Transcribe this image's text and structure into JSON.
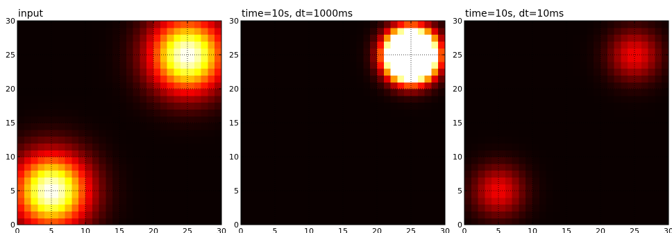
{
  "chart_data": [
    {
      "type": "heatmap",
      "title": "input",
      "xlim": [
        0,
        30
      ],
      "ylim": [
        0,
        30
      ],
      "xticks": [
        "0",
        "5",
        "10",
        "15",
        "20",
        "25",
        "30"
      ],
      "yticks": [
        "0",
        "5",
        "10",
        "15",
        "20",
        "25",
        "30"
      ],
      "grid": "dotted lines at 5, 10, 15, 20, 25",
      "colormap": "hot",
      "vmax": 1.0,
      "blobs": [
        {
          "cx": 5,
          "cy": 5,
          "sigma": 3.8,
          "peak": 1.0
        },
        {
          "cx": 25,
          "cy": 25,
          "sigma": 3.8,
          "peak": 1.0
        }
      ]
    },
    {
      "type": "heatmap",
      "title": "time=10s, dt=1000ms",
      "xlim": [
        0,
        30
      ],
      "ylim": [
        0,
        30
      ],
      "xticks": [
        "0",
        "5",
        "10",
        "15",
        "20",
        "25",
        "30"
      ],
      "yticks": [
        "0",
        "5",
        "10",
        "15",
        "20",
        "25",
        "30"
      ],
      "grid": "dotted lines at 5, 10, 15, 20, 25",
      "colormap": "hot",
      "vmax": 1.0,
      "blobs": [
        {
          "cx": 25,
          "cy": 25,
          "sigma": 2.2,
          "peak": 4.0
        }
      ]
    },
    {
      "type": "heatmap",
      "title": "time=10s, dt=10ms",
      "xlim": [
        0,
        30
      ],
      "ylim": [
        0,
        30
      ],
      "xticks": [
        "0",
        "5",
        "10",
        "15",
        "20",
        "25",
        "30"
      ],
      "yticks": [
        "0",
        "5",
        "10",
        "15",
        "20",
        "25",
        "30"
      ],
      "grid": "dotted lines at 5, 10, 15, 20, 25",
      "colormap": "hot",
      "vmax": 1.0,
      "blobs": [
        {
          "cx": 5,
          "cy": 5,
          "sigma": 2.6,
          "peak": 0.35
        },
        {
          "cx": 25,
          "cy": 25,
          "sigma": 2.6,
          "peak": 0.35
        }
      ]
    }
  ]
}
